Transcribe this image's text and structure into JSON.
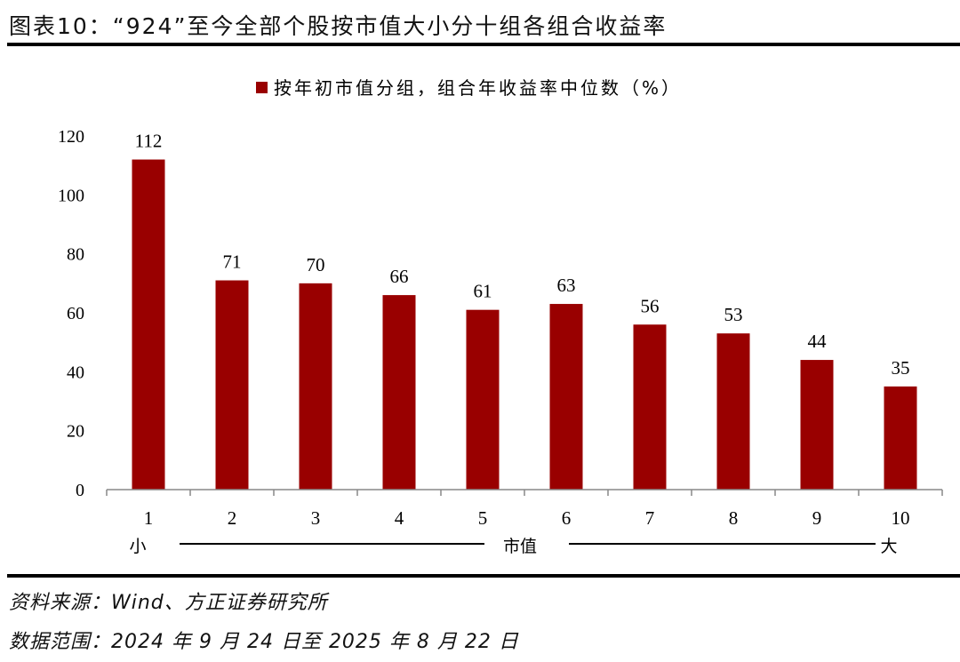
{
  "title": "图表10：“924”至今全部个股按市值大小分十组各组合收益率",
  "source": "资料来源：Wind、方正证券研究所",
  "range": "数据范围：2024 年 9 月 24 日至 2025 年 8 月 22 日",
  "colors": {
    "bar": "#990000"
  },
  "chart_data": {
    "type": "bar",
    "title": "",
    "legend": [
      "按年初市值分组，组合年收益率中位数（%）"
    ],
    "legend_position": "top-center",
    "categories": [
      "1",
      "2",
      "3",
      "4",
      "5",
      "6",
      "7",
      "8",
      "9",
      "10"
    ],
    "values": [
      112,
      71,
      70,
      66,
      61,
      63,
      56,
      53,
      44,
      35
    ],
    "data_labels": [
      "112",
      "71",
      "70",
      "66",
      "61",
      "63",
      "56",
      "53",
      "44",
      "35"
    ],
    "yticks": [
      "0",
      "20",
      "40",
      "60",
      "80",
      "100",
      "120"
    ],
    "ylim": [
      0,
      120
    ],
    "xlabel": {
      "left": "小",
      "center": "市值",
      "right": "大"
    },
    "ylabel": "",
    "grid": false
  }
}
